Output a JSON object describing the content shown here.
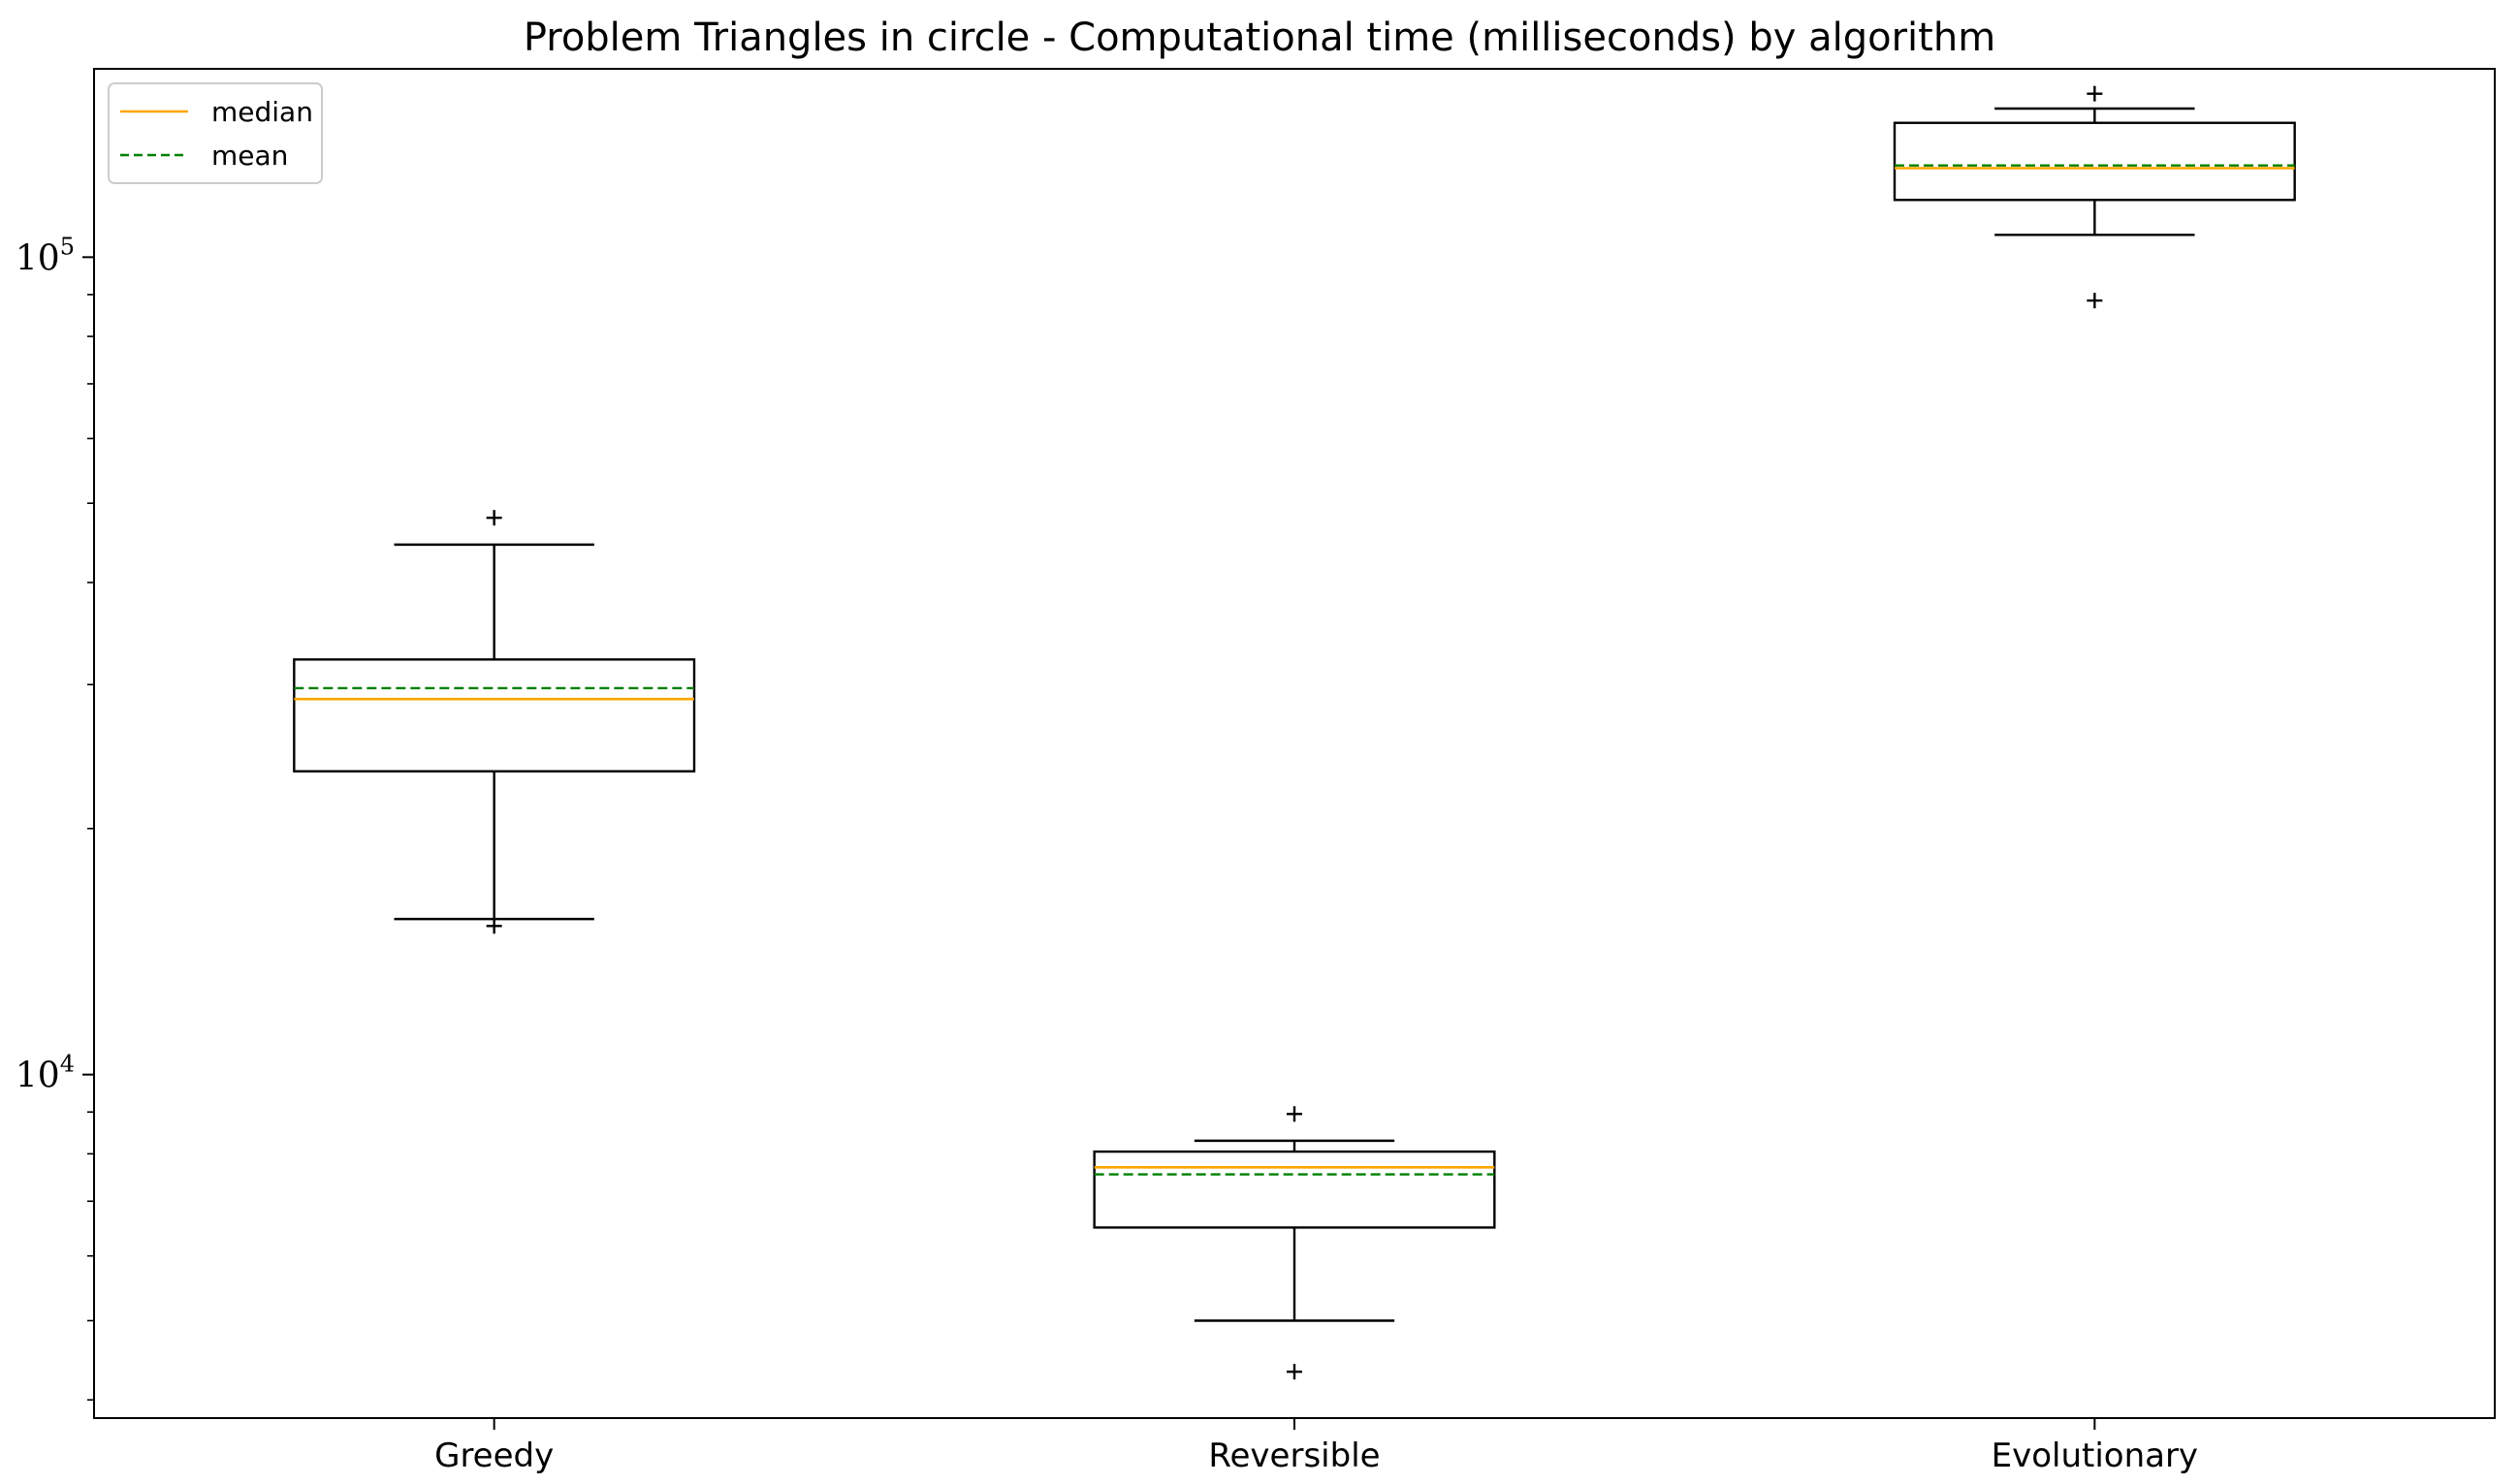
{
  "chart_data": {
    "type": "box",
    "title": "Problem Triangles in circle - Computational time (milliseconds) by algorithm",
    "xlabel": "",
    "ylabel": "",
    "yscale": "log",
    "ylim": [
      3800,
      170000
    ],
    "yticks": [
      {
        "value": 10000,
        "base": "10",
        "exp": "4"
      },
      {
        "value": 100000,
        "base": "10",
        "exp": "5"
      }
    ],
    "grid": false,
    "legend": {
      "position": "top-left",
      "entries": [
        {
          "label": "median",
          "color": "#ffa500",
          "style": "solid"
        },
        {
          "label": "mean",
          "color": "#008000",
          "style": "dashed"
        }
      ]
    },
    "categories": [
      "Greedy",
      "Reversible",
      "Evolutionary"
    ],
    "boxes": [
      {
        "name": "Greedy",
        "whislo": 15500,
        "q1": 23500,
        "med": 28800,
        "q3": 32200,
        "whishi": 44500,
        "mean": 29700,
        "fliers": [
          48000,
          15200
        ]
      },
      {
        "name": "Reversible",
        "whislo": 5000,
        "q1": 6500,
        "med": 7700,
        "q3": 8050,
        "whishi": 8300,
        "mean": 7550,
        "fliers": [
          8950,
          4330
        ]
      },
      {
        "name": "Evolutionary",
        "whislo": 106500,
        "q1": 117500,
        "med": 128500,
        "q3": 146000,
        "whishi": 152000,
        "mean": 129500,
        "fliers": [
          158500,
          88500
        ]
      }
    ],
    "colors": {
      "median": "#ffa500",
      "mean": "#008000",
      "box": "#000000",
      "flier": "#000000"
    }
  }
}
